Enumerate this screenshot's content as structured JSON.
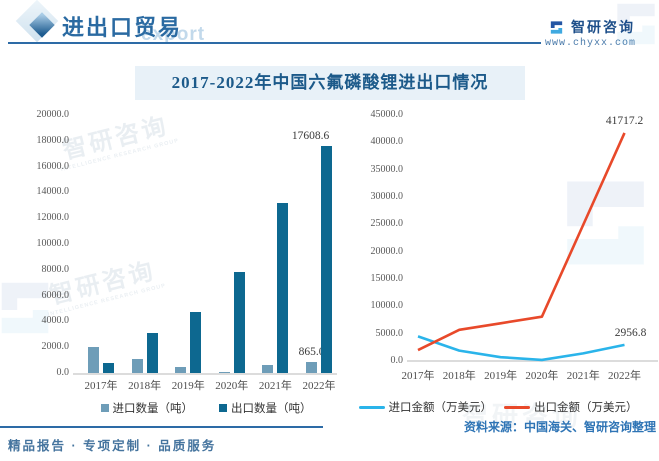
{
  "header": {
    "section_title": "进出口贸易",
    "bg_watermark": "export",
    "brand": {
      "name": "智研咨询",
      "url": "www.chyxx.com"
    }
  },
  "title": "2017-2022年中国六氟磷酸锂进出口情况",
  "chart_data": [
    {
      "type": "bar",
      "title": "2017-2022年中国六氟磷酸锂进出口情况",
      "categories": [
        "2017年",
        "2018年",
        "2019年",
        "2020年",
        "2021年",
        "2022年"
      ],
      "series": [
        {
          "name": "进口数量（吨）",
          "color": "#6e9db8",
          "values": [
            2000,
            1100,
            500,
            50,
            600,
            865
          ],
          "last_label": "865.0"
        },
        {
          "name": "出口数量（吨）",
          "color": "#0d6890",
          "values": [
            800,
            3100,
            4700,
            7850,
            13200,
            17608.6
          ],
          "last_label": "17608.6"
        }
      ],
      "ylim": [
        0,
        20000
      ],
      "ytick_step": 2000,
      "grid": false,
      "legend_position": "bottom"
    },
    {
      "type": "line",
      "title": "2017-2022年中国六氟磷酸锂进出口情况",
      "categories": [
        "2017年",
        "2018年",
        "2019年",
        "2020年",
        "2021年",
        "2022年"
      ],
      "series": [
        {
          "name": "进口金额（万美元）",
          "color": "#2ab4ea",
          "values": [
            4500,
            1900,
            700,
            200,
            1400,
            2956.8
          ],
          "last_label": "2956.8"
        },
        {
          "name": "出口金额（万美元）",
          "color": "#e8492a",
          "values": [
            2000,
            5700,
            6900,
            8100,
            24900,
            41717.2
          ],
          "last_label": "41717.2"
        }
      ],
      "ylim": [
        0,
        45000
      ],
      "ytick_step": 5000,
      "grid": false,
      "legend_position": "bottom"
    }
  ],
  "footer": {
    "source": "资料来源：中国海关、智研咨询整理",
    "slogan": "精品报告 · 专项定制 · 品质服务"
  },
  "watermark": {
    "cn": "智研咨询",
    "en": "INTELLIGENCE RESEARCH GROUP"
  }
}
